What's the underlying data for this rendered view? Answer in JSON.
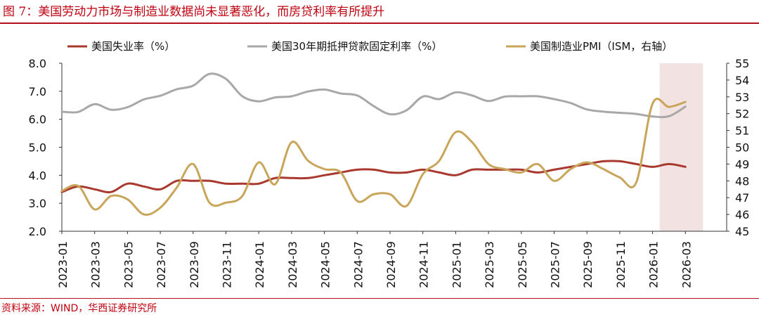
{
  "title": "图 7：美国劳动力市场与制造业数据尚未显著恶化，而房贷利率有所提升",
  "source": "资料来源：WIND，华西证券研究所",
  "chart_data": {
    "type": "line",
    "x": [
      "2023-01",
      "2023-02",
      "2023-03",
      "2023-04",
      "2023-05",
      "2023-06",
      "2023-07",
      "2023-08",
      "2023-09",
      "2023-10",
      "2023-11",
      "2023-12",
      "2024-01",
      "2024-02",
      "2024-03",
      "2024-04",
      "2024-05",
      "2024-06",
      "2024-07",
      "2024-08",
      "2024-09",
      "2024-10",
      "2024-11",
      "2024-12",
      "2025-01",
      "2025-02",
      "2025-03",
      "2025-04",
      "2025-05",
      "2025-06",
      "2025-07",
      "2025-08",
      "2025-09",
      "2025-10",
      "2025-11",
      "2025-12",
      "2026-01",
      "2026-02",
      "2026-03"
    ],
    "x_tick_labels": [
      "2023-01",
      "2023-03",
      "2023-05",
      "2023-07",
      "2023-09",
      "2023-11",
      "2024-01",
      "2024-03",
      "2024-05",
      "2024-07",
      "2024-09",
      "2024-11",
      "2025-01",
      "2025-03",
      "2025-05",
      "2025-07",
      "2025-09",
      "2025-11",
      "2026-01",
      "2026-03"
    ],
    "series": [
      {
        "name": "美国失业率（%）",
        "axis": "left",
        "color": "#a9392f",
        "values": [
          3.4,
          3.6,
          3.5,
          3.4,
          3.7,
          3.6,
          3.5,
          3.8,
          3.8,
          3.8,
          3.7,
          3.7,
          3.7,
          3.9,
          3.9,
          3.9,
          4.0,
          4.1,
          4.2,
          4.2,
          4.1,
          4.1,
          4.2,
          4.1,
          4.0,
          4.2,
          4.2,
          4.2,
          4.2,
          4.1,
          4.2,
          4.3,
          4.4,
          4.5,
          4.5,
          4.4,
          4.3,
          4.4,
          4.3
        ]
      },
      {
        "name": "美国30年期抵押贷款固定利率（%）",
        "axis": "left",
        "color": "#a8a8a8",
        "values": [
          6.27,
          6.26,
          6.54,
          6.34,
          6.43,
          6.71,
          6.84,
          7.07,
          7.2,
          7.62,
          7.44,
          6.82,
          6.64,
          6.78,
          6.82,
          6.99,
          7.06,
          6.92,
          6.85,
          6.47,
          6.18,
          6.32,
          6.81,
          6.72,
          6.96,
          6.85,
          6.65,
          6.81,
          6.82,
          6.82,
          6.72,
          6.58,
          6.35,
          6.27,
          6.23,
          6.19,
          6.1,
          6.11,
          6.45
        ]
      },
      {
        "name": "美国制造业PMI（ISM，右轴）",
        "axis": "right",
        "color": "#c9a55a",
        "values": [
          47.4,
          47.7,
          46.3,
          47.1,
          46.9,
          46.0,
          46.4,
          47.6,
          49.0,
          46.7,
          46.7,
          47.1,
          49.1,
          47.8,
          50.3,
          49.2,
          48.7,
          48.5,
          46.8,
          47.2,
          47.2,
          46.5,
          48.4,
          49.2,
          50.9,
          50.3,
          49.0,
          48.7,
          48.5,
          49.0,
          48.0,
          48.7,
          49.1,
          48.7,
          48.2,
          47.9,
          52.6,
          52.4,
          52.7
        ]
      }
    ],
    "y_left": {
      "min": 2.0,
      "max": 8.0,
      "ticks": [
        "2.0",
        "3.0",
        "4.0",
        "5.0",
        "6.0",
        "7.0",
        "8.0"
      ]
    },
    "y_right": {
      "min": 45,
      "max": 55,
      "ticks": [
        "45",
        "46",
        "47",
        "48",
        "49",
        "50",
        "51",
        "52",
        "53",
        "54",
        "55"
      ]
    },
    "shaded_region": {
      "from": "2026-01",
      "to": "2026-03",
      "color": "#f3e2e2"
    },
    "legend_position": "top"
  }
}
